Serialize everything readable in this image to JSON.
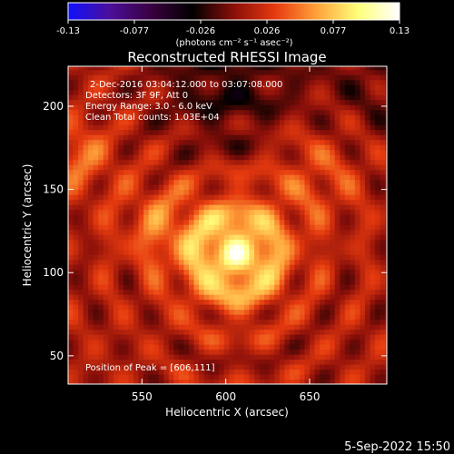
{
  "chart_data": {
    "type": "heatmap",
    "title": "Reconstructed RHESSI Image",
    "xlabel": "Heliocentric X (arcsec)",
    "ylabel": "Heliocentric Y (arcsec)",
    "xlim": [
      506,
      696
    ],
    "ylim": [
      33,
      224
    ],
    "xticks": [
      550,
      600,
      650
    ],
    "yticks": [
      50,
      100,
      150,
      200
    ],
    "colorbar": {
      "ticks": [
        "-0.13",
        "-0.077",
        "-0.026",
        "0.026",
        "0.077",
        "0.13"
      ],
      "range": [
        -0.13,
        0.13
      ],
      "units_text": "(photons cm⁻² s⁻¹ asec⁻²)"
    },
    "info_lines": [
      "2-Dec-2016 03:04:12.000 to 03:07:08.000",
      "Detectors: 3F 9F, Att 0",
      "Energy Range: 3.0 - 6.0 keV",
      "Clean     Total counts: 1.03E+04"
    ],
    "peak_text": "Position of Peak = [606,111]",
    "peak": {
      "x": 606,
      "y": 111
    },
    "grid": false,
    "colormap": [
      "#1010ff",
      "#4b0f9b",
      "#3a0040",
      "#000000",
      "#8a0f0a",
      "#e63a0f",
      "#ffa23a",
      "#ffff7a",
      "#ffffff"
    ]
  },
  "footer": {
    "date_text": "5-Sep-2022 15:50"
  }
}
